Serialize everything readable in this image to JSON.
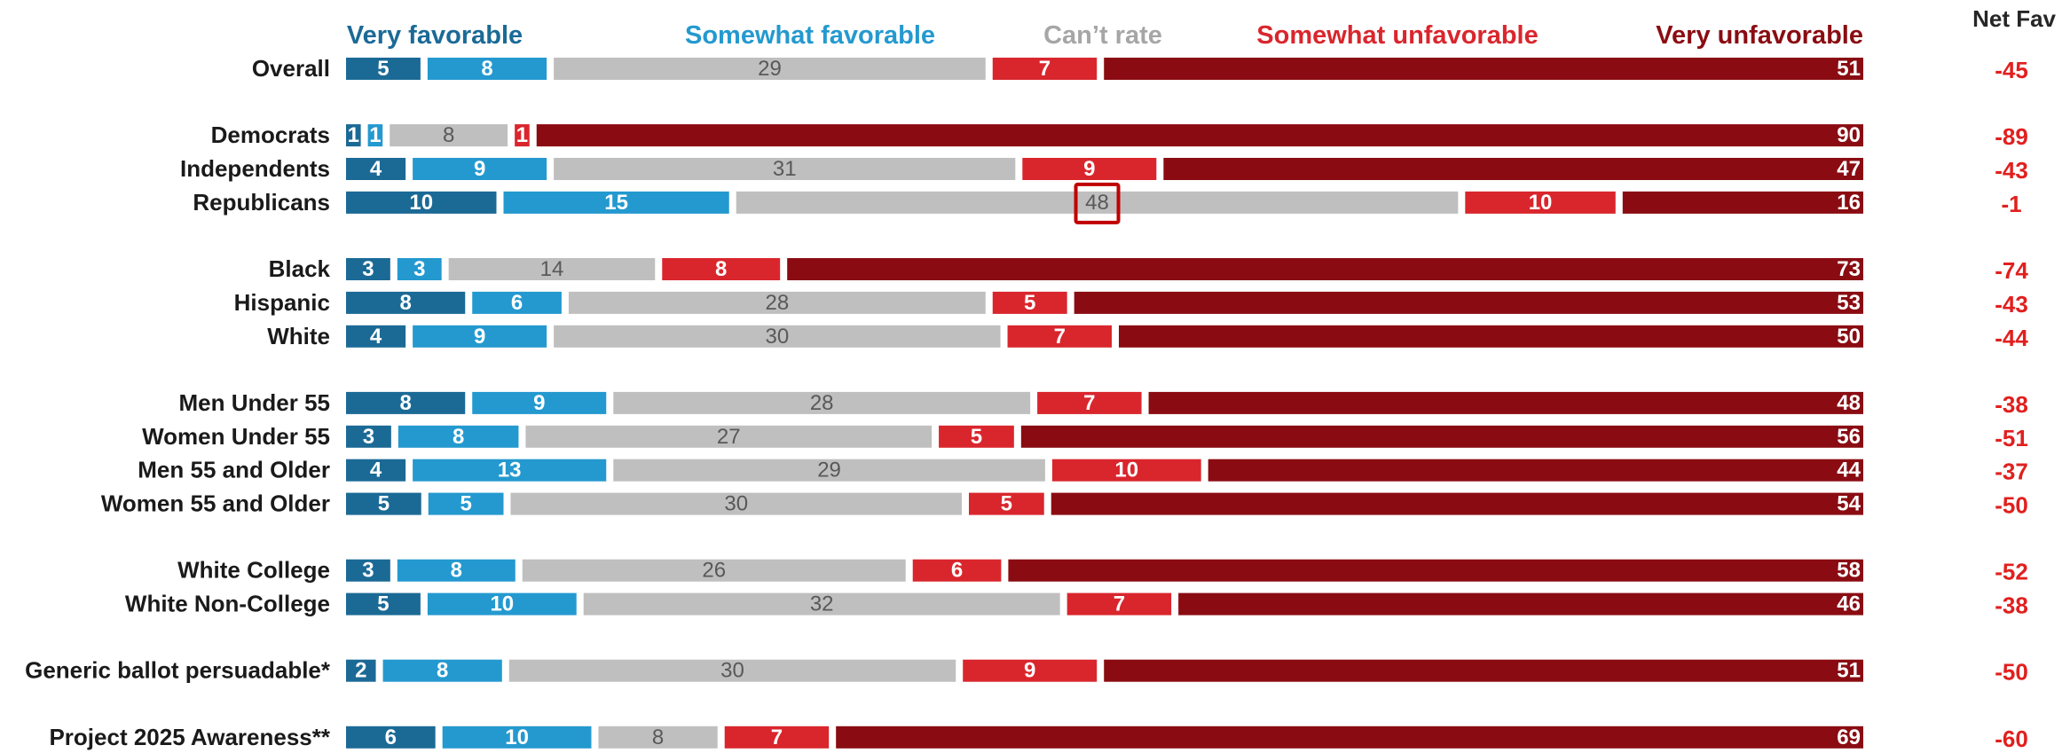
{
  "chart_data": {
    "type": "bar",
    "stacked": true,
    "orientation": "horizontal",
    "normalized": true,
    "legend_placement": "top",
    "grid": false,
    "net_header": "Net Fav",
    "series": [
      {
        "name": "Very favorable",
        "color": "#1b6a96",
        "text_color": "#ffffff",
        "label_weight": "bold"
      },
      {
        "name": "Somewhat favorable",
        "color": "#2499cf",
        "text_color": "#ffffff",
        "label_weight": "bold"
      },
      {
        "name": "Can’t rate",
        "color": "#bfbfbf",
        "text_color": "#595959",
        "label_weight": "normal"
      },
      {
        "name": "Somewhat unfavorable",
        "color": "#d9262d",
        "text_color": "#ffffff",
        "label_weight": "bold"
      },
      {
        "name": "Very unfavorable",
        "color": "#8a0c12",
        "text_color": "#ffffff",
        "label_weight": "bold"
      }
    ],
    "rows": [
      {
        "label": "Overall",
        "values": [
          5,
          8,
          29,
          7,
          51
        ],
        "net": "-45"
      },
      {
        "label": "Democrats",
        "values": [
          1,
          1,
          8,
          1,
          90
        ],
        "net": "-89",
        "gap_before": true
      },
      {
        "label": "Independents",
        "values": [
          4,
          9,
          31,
          9,
          47
        ],
        "net": "-43"
      },
      {
        "label": "Republicans",
        "values": [
          10,
          15,
          48,
          10,
          16
        ],
        "net": "-1",
        "highlight_series": 2
      },
      {
        "label": "Black",
        "values": [
          3,
          3,
          14,
          8,
          73
        ],
        "net": "-74",
        "gap_before": true
      },
      {
        "label": "Hispanic",
        "values": [
          8,
          6,
          28,
          5,
          53
        ],
        "net": "-43"
      },
      {
        "label": "White",
        "values": [
          4,
          9,
          30,
          7,
          50
        ],
        "net": "-44"
      },
      {
        "label": "Men Under 55",
        "values": [
          8,
          9,
          28,
          7,
          48
        ],
        "net": "-38",
        "gap_before": true
      },
      {
        "label": "Women Under 55",
        "values": [
          3,
          8,
          27,
          5,
          56
        ],
        "net": "-51"
      },
      {
        "label": "Men 55 and Older",
        "values": [
          4,
          13,
          29,
          10,
          44
        ],
        "net": "-37"
      },
      {
        "label": "Women 55 and Older",
        "values": [
          5,
          5,
          30,
          5,
          54
        ],
        "net": "-50"
      },
      {
        "label": "White College",
        "values": [
          3,
          8,
          26,
          6,
          58
        ],
        "net": "-52",
        "gap_before": true
      },
      {
        "label": "White Non-College",
        "values": [
          5,
          10,
          32,
          7,
          46
        ],
        "net": "-38"
      },
      {
        "label": "Generic ballot persuadable*",
        "values": [
          2,
          8,
          30,
          9,
          51
        ],
        "net": "-50",
        "gap_before": true
      },
      {
        "label": "Project 2025 Awareness**",
        "values": [
          6,
          10,
          8,
          7,
          69
        ],
        "net": "-60",
        "gap_before": true
      }
    ]
  }
}
